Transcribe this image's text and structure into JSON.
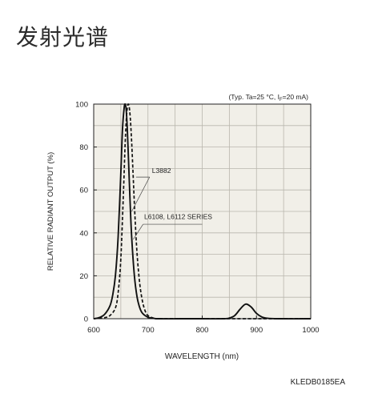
{
  "page": {
    "title": "发射光谱",
    "doc_code": "KLEDB0185EA"
  },
  "chart_data": {
    "type": "line",
    "condition_note": "(Typ. Ta=25 °C, I",
    "condition_note_sub": "F",
    "condition_note_tail": "=20 mA)",
    "xlabel": "WAVELENGTH (nm)",
    "ylabel": "RELATIVE RADIANT OUTPUT (%)",
    "xlim": [
      600,
      1000
    ],
    "ylim": [
      0,
      100
    ],
    "xticks": [
      600,
      700,
      800,
      900,
      1000
    ],
    "yticks": [
      0,
      20,
      40,
      60,
      80,
      100
    ],
    "x_minor_step": 50,
    "y_minor_step": 10,
    "grid": true,
    "background": "#f1efe8",
    "series": [
      {
        "name": "L3882",
        "style": "solid",
        "color": "#111111",
        "x": [
          600,
          610,
          620,
          630,
          635,
          640,
          645,
          650,
          653,
          656,
          658,
          660,
          662,
          664,
          667,
          670,
          675,
          680,
          685,
          690,
          700,
          710,
          720,
          760,
          800,
          840,
          850,
          860,
          870,
          880,
          890,
          900,
          910,
          920,
          940,
          1000
        ],
        "y": [
          0,
          0.5,
          2,
          6,
          11,
          20,
          38,
          68,
          88,
          98,
          100,
          97,
          88,
          75,
          55,
          38,
          20,
          10,
          5,
          2.5,
          0.7,
          0.2,
          0,
          0,
          0,
          0,
          0.3,
          1.5,
          4.5,
          6.8,
          5.5,
          2.5,
          0.8,
          0.2,
          0,
          0
        ]
      },
      {
        "name": "L6108, L6112 SERIES",
        "style": "dashed",
        "color": "#111111",
        "x": [
          600,
          620,
          630,
          640,
          645,
          650,
          655,
          658,
          661,
          664,
          667,
          670,
          673,
          676,
          680,
          685,
          690,
          695,
          700,
          710,
          720,
          740,
          1000
        ],
        "y": [
          0,
          0.5,
          1.5,
          5,
          12,
          28,
          60,
          82,
          96,
          100,
          95,
          82,
          65,
          48,
          30,
          16,
          8,
          3.5,
          1.5,
          0.3,
          0,
          0,
          0
        ]
      }
    ],
    "annotations": [
      {
        "text": "L3882",
        "series": "L3882"
      },
      {
        "text": "L6108, L6112 SERIES",
        "series": "L6108, L6112 SERIES"
      }
    ]
  }
}
